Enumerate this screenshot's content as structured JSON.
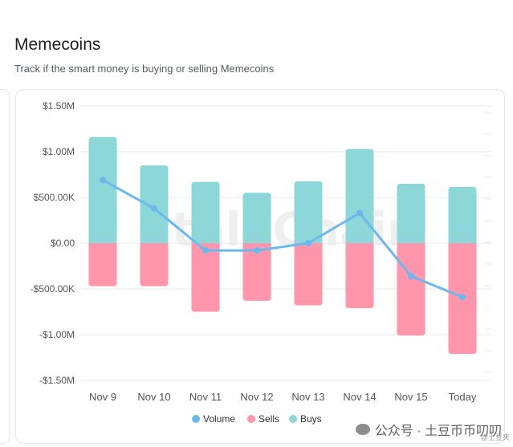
{
  "header": {
    "title": "Memecoins",
    "subtitle": "Track if the smart money is buying or selling Memecoins"
  },
  "chart_data": {
    "type": "bar",
    "stacked": true,
    "categories": [
      "Nov 9",
      "Nov 10",
      "Nov 11",
      "Nov 12",
      "Nov 13",
      "Nov 14",
      "Nov 15",
      "Today"
    ],
    "series": [
      {
        "name": "Buys",
        "type": "bar",
        "color": "#8dd7d9",
        "values": [
          1160000,
          850000,
          670000,
          550000,
          675000,
          1030000,
          650000,
          615000
        ]
      },
      {
        "name": "Sells",
        "type": "bar",
        "color": "#ff96ab",
        "values": [
          -470000,
          -470000,
          -750000,
          -630000,
          -680000,
          -710000,
          -1010000,
          -1210000
        ]
      },
      {
        "name": "Volume",
        "type": "line",
        "color": "#6bb8ee",
        "values": [
          690000,
          380000,
          -80000,
          -80000,
          0,
          330000,
          -360000,
          -590000
        ]
      }
    ],
    "yticks": [
      1500000,
      1000000,
      500000,
      0,
      -500000,
      -1000000,
      -1500000
    ],
    "ytick_labels": [
      "$1.50M",
      "$1.00M",
      "$500.00K",
      "$0.00",
      "-$500.00K",
      "-$1.00M",
      "-$1.50M"
    ],
    "ylim": [
      -1500000,
      1500000
    ],
    "legend": [
      {
        "name": "Volume",
        "color": "#6bb8ee"
      },
      {
        "name": "Sells",
        "color": "#ff96ab"
      },
      {
        "name": "Buys",
        "color": "#8dd7d9"
      }
    ],
    "legend_position": "bottom",
    "grid": true,
    "watermark": "StalkChain"
  },
  "footer": {
    "watermark": "公众号 · 土豆币币叨叨",
    "small": "@土豆夹"
  }
}
